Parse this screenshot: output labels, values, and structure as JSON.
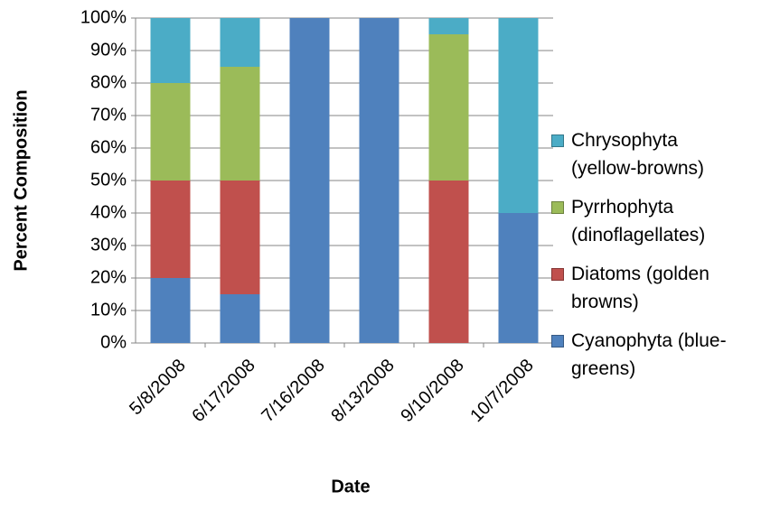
{
  "chart_data": {
    "type": "stacked-bar",
    "x_label": "Date",
    "y_label": "Percent Composition",
    "categories": [
      "5/8/2008",
      "6/17/2008",
      "7/16/2008",
      "8/13/2008",
      "9/10/2008",
      "10/7/2008"
    ],
    "series": [
      {
        "name": "Cyanophyta (blue-greens)",
        "color": "#4f81bd",
        "values": [
          20,
          15,
          100,
          100,
          0,
          40
        ]
      },
      {
        "name": "Diatoms (golden browns)",
        "color": "#c0504d",
        "values": [
          30,
          35,
          0,
          0,
          50,
          0
        ]
      },
      {
        "name": "Pyrrhophyta (dinoflagellates)",
        "color": "#9bbb59",
        "values": [
          30,
          35,
          0,
          0,
          45,
          0
        ]
      },
      {
        "name": "Chrysophyta (yellow-browns)",
        "color": "#4bacc6",
        "values": [
          20,
          15,
          0,
          0,
          5,
          60
        ]
      }
    ],
    "ylim": [
      0,
      100
    ],
    "yticks": [
      {
        "value": 0,
        "label": "0%"
      },
      {
        "value": 10,
        "label": "10%"
      },
      {
        "value": 20,
        "label": "20%"
      },
      {
        "value": 30,
        "label": "30%"
      },
      {
        "value": 40,
        "label": "40%"
      },
      {
        "value": 50,
        "label": "50%"
      },
      {
        "value": 60,
        "label": "60%"
      },
      {
        "value": 70,
        "label": "70%"
      },
      {
        "value": 80,
        "label": "80%"
      },
      {
        "value": 90,
        "label": "90%"
      },
      {
        "value": 100,
        "label": "100%"
      }
    ],
    "grid": true,
    "legend": "right"
  }
}
